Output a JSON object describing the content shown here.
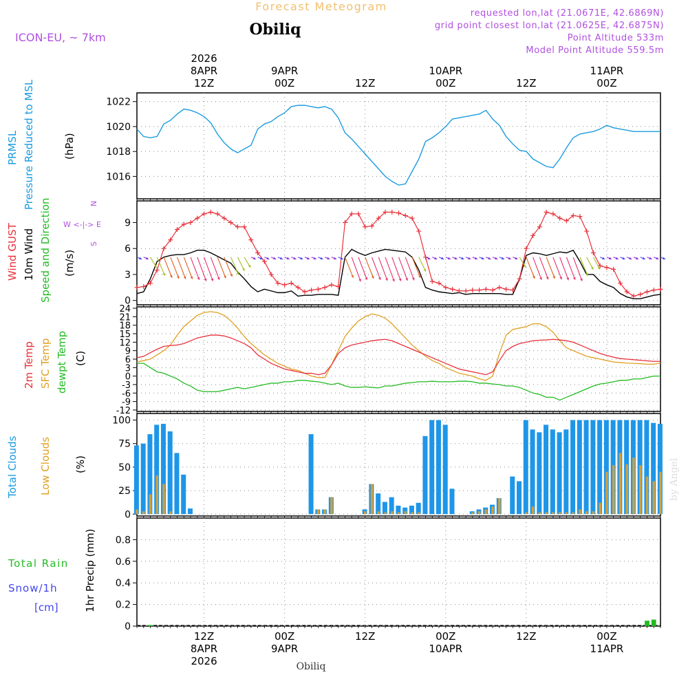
{
  "header": {
    "title": "Forecast Meteogram",
    "location": "Obiliq",
    "model": "ICON-EU, ~ 7km",
    "requested": "requested lon,lat (21.0671E, 42.6869N)",
    "grid_point": "grid point closest lon,lat (21.0625E, 42.6875N)",
    "point_altitude": "Point Altitude 533m",
    "model_altitude": "Model Point Altitude 559.5m",
    "footer_location": "Obiliq",
    "watermark": "by Angel"
  },
  "time_axis": {
    "top_labels": [
      {
        "line1": "2026",
        "line2": "8APR",
        "line3": "12Z",
        "hour": 12
      },
      {
        "line1": "",
        "line2": "9APR",
        "line3": "00Z",
        "hour": 24
      },
      {
        "line1": "",
        "line2": "",
        "line3": "12Z",
        "hour": 36
      },
      {
        "line1": "",
        "line2": "10APR",
        "line3": "00Z",
        "hour": 48
      },
      {
        "line1": "",
        "line2": "",
        "line3": "12Z",
        "hour": 60
      },
      {
        "line1": "",
        "line2": "11APR",
        "line3": "00Z",
        "hour": 72
      }
    ],
    "bottom_labels": [
      {
        "line1": "12Z",
        "line2": "8APR",
        "line3": "2026",
        "hour": 12
      },
      {
        "line1": "00Z",
        "line2": "9APR",
        "line3": "",
        "hour": 24
      },
      {
        "line1": "12Z",
        "line2": "",
        "line3": "",
        "hour": 36
      },
      {
        "line1": "00Z",
        "line2": "10APR",
        "line3": "",
        "hour": 48
      },
      {
        "line1": "12Z",
        "line2": "",
        "line3": "",
        "hour": 60
      },
      {
        "line1": "00Z",
        "line2": "11APR",
        "line3": "",
        "hour": 72
      }
    ],
    "start_hour": 2,
    "end_hour": 80,
    "step_hours": 1
  },
  "colors": {
    "pressure": "#1a9be0",
    "gust": "#e8303a",
    "wind": "#000000",
    "temp2m": "#e8303a",
    "sfc": "#e0a020",
    "dewpt": "#22bb22",
    "clouds_total": "#1e96e8",
    "clouds_low": "#d0a040",
    "rain": "#22bb22",
    "snow": "#4444ee",
    "header_purple": "#b050e0",
    "title_orange": "#f0c070"
  },
  "chart_data": [
    {
      "type": "line",
      "panel": "pressure",
      "title": "PRMSL Pressure Reduced to MSL",
      "ylabel_1": "PRMSL",
      "ylabel_2": "Pressure Reduced to MSL",
      "unit": "(hPa)",
      "ylim": [
        1014.2,
        1022.7
      ],
      "ticks": [
        "1016",
        "1018",
        "1020",
        "1022"
      ],
      "tick_values": [
        1016,
        1018,
        1020,
        1022
      ],
      "series": [
        {
          "name": "PRMSL",
          "values": [
            1019.8,
            1019.2,
            1019.1,
            1019.2,
            1020.2,
            1020.5,
            1021.0,
            1021.4,
            1021.3,
            1021.1,
            1020.8,
            1020.3,
            1019.4,
            1018.7,
            1018.2,
            1017.9,
            1018.2,
            1018.5,
            1019.8,
            1020.2,
            1020.4,
            1020.8,
            1021.1,
            1021.6,
            1021.7,
            1021.7,
            1021.6,
            1021.5,
            1021.6,
            1021.4,
            1020.7,
            1019.5,
            1019.0,
            1018.4,
            1017.8,
            1017.2,
            1016.6,
            1016.0,
            1015.6,
            1015.3,
            1015.4,
            1016.4,
            1017.4,
            1018.8,
            1019.1,
            1019.5,
            1020.0,
            1020.6,
            1020.7,
            1020.8,
            1020.9,
            1021.0,
            1021.3,
            1020.6,
            1020.1,
            1019.2,
            1018.6,
            1018.1,
            1018.0,
            1017.4,
            1017.1,
            1016.8,
            1016.7,
            1017.4,
            1018.3,
            1019.1,
            1019.4,
            1019.5,
            1019.6,
            1019.8,
            1020.1,
            1019.9,
            1019.8,
            1019.7,
            1019.6,
            1019.6,
            1019.6,
            1019.6,
            1019.6
          ]
        }
      ]
    },
    {
      "type": "line",
      "panel": "wind",
      "ylabel_1": "Wind GUST",
      "ylabel_2": "10m Wind",
      "ylabel_3": "Speed and Direction",
      "unit": "(m/s)",
      "compass_n": "N",
      "compass_s": "S",
      "compass_w": "W <-|-> E",
      "ylim": [
        -0.5,
        11.5
      ],
      "ticks": [
        "0",
        "3",
        "6",
        "9"
      ],
      "tick_values": [
        0,
        3,
        6,
        9
      ],
      "series": [
        {
          "name": "Wind GUST",
          "values": [
            1.5,
            1.6,
            2.0,
            3.5,
            6.0,
            7.0,
            8.2,
            8.8,
            9.0,
            9.5,
            10.0,
            10.2,
            10.0,
            9.5,
            9.0,
            8.5,
            8.5,
            7.0,
            5.5,
            4.5,
            3.0,
            2.0,
            1.8,
            2.0,
            1.5,
            1.0,
            1.2,
            1.3,
            1.5,
            1.8,
            1.6,
            9.0,
            10.0,
            10.0,
            8.5,
            8.6,
            9.5,
            10.2,
            10.2,
            10.1,
            9.8,
            9.5,
            8.0,
            5.0,
            2.2,
            2.0,
            1.5,
            1.3,
            1.1,
            1.1,
            1.2,
            1.2,
            1.3,
            1.2,
            1.5,
            1.3,
            1.2,
            2.5,
            6.0,
            7.5,
            8.5,
            10.2,
            10.0,
            9.5,
            9.2,
            9.8,
            9.7,
            8.0,
            5.5,
            4.0,
            3.8,
            3.6,
            2.0,
            1.0,
            0.5,
            0.7,
            1.0,
            1.2,
            1.3
          ]
        },
        {
          "name": "10m Wind",
          "values": [
            0.8,
            1.0,
            2.5,
            4.5,
            5.0,
            5.2,
            5.3,
            5.3,
            5.5,
            5.8,
            5.8,
            5.5,
            5.1,
            4.7,
            4.3,
            3.3,
            2.5,
            1.6,
            1.0,
            1.3,
            1.1,
            0.9,
            0.9,
            1.1,
            0.5,
            0.6,
            0.6,
            0.7,
            0.7,
            0.7,
            0.6,
            5.0,
            5.9,
            5.5,
            5.2,
            5.5,
            5.7,
            5.9,
            5.8,
            5.7,
            5.6,
            5.0,
            3.5,
            1.5,
            1.2,
            1.0,
            0.9,
            0.8,
            0.9,
            0.7,
            0.8,
            0.8,
            0.8,
            0.8,
            0.8,
            0.7,
            0.7,
            2.5,
            5.2,
            5.5,
            5.4,
            5.2,
            5.4,
            5.6,
            5.5,
            5.8,
            4.5,
            3.0,
            3.0,
            2.2,
            1.8,
            1.5,
            0.8,
            0.4,
            0.2,
            0.2,
            0.4,
            0.6,
            0.7
          ]
        }
      ],
      "gust_markers_every": 1
    },
    {
      "type": "line",
      "panel": "temperature",
      "ylabel_1": "2m Temp",
      "ylabel_2": "SFC Temp",
      "ylabel_3": "dewpt Temp",
      "unit": "(C)",
      "ylim": [
        -12.5,
        24.5
      ],
      "ticks": [
        "24",
        "21",
        "18",
        "15",
        "12",
        "9",
        "6",
        "3",
        "0",
        "-3",
        "-6",
        "-9",
        "-12"
      ],
      "tick_values": [
        24,
        21,
        18,
        15,
        12,
        9,
        6,
        3,
        0,
        -3,
        -6,
        -9,
        -12
      ],
      "series": [
        {
          "name": "2m Temp",
          "values": [
            6.5,
            7.0,
            8.3,
            9.5,
            10.5,
            10.8,
            11.0,
            11.5,
            12.5,
            13.5,
            14.0,
            14.5,
            14.5,
            14.2,
            13.5,
            12.5,
            11.5,
            10.0,
            7.5,
            6.0,
            4.5,
            3.5,
            2.5,
            2.0,
            1.5,
            1.0,
            1.0,
            0.5,
            1.0,
            4.0,
            8.0,
            10.0,
            11.0,
            11.5,
            12.0,
            12.5,
            12.8,
            13.0,
            12.5,
            11.5,
            10.5,
            9.5,
            8.5,
            7.5,
            6.5,
            5.5,
            4.5,
            3.5,
            2.5,
            2.0,
            1.5,
            1.0,
            0.5,
            1.5,
            5.5,
            9.0,
            10.5,
            11.5,
            12.0,
            12.5,
            12.7,
            12.8,
            13.0,
            12.8,
            12.5,
            12.0,
            11.0,
            10.0,
            9.0,
            8.0,
            7.3,
            6.7,
            6.2,
            6.0,
            5.8,
            5.6,
            5.4,
            5.2,
            5.2
          ]
        },
        {
          "name": "SFC Temp",
          "values": [
            5.0,
            5.5,
            6.0,
            7.5,
            9.0,
            11.0,
            14.5,
            17.5,
            19.5,
            21.5,
            22.5,
            22.8,
            22.5,
            21.5,
            19.5,
            17.0,
            14.0,
            11.5,
            9.5,
            7.5,
            6.0,
            4.5,
            3.5,
            2.5,
            2.0,
            1.0,
            0.0,
            -0.5,
            -0.5,
            4.0,
            9.0,
            14.0,
            17.0,
            19.5,
            21.0,
            22.0,
            21.5,
            20.5,
            18.5,
            16.0,
            13.5,
            11.0,
            9.0,
            7.0,
            5.5,
            4.5,
            3.0,
            2.0,
            1.0,
            0.5,
            0.0,
            -1.0,
            -1.5,
            0.0,
            8.0,
            14.5,
            16.5,
            17.0,
            17.5,
            18.5,
            18.5,
            17.5,
            15.5,
            12.5,
            10.0,
            9.0,
            8.0,
            7.0,
            6.5,
            6.0,
            5.5,
            5.0,
            4.8,
            4.6,
            4.5,
            4.4,
            4.2,
            4.2,
            4.6
          ]
        },
        {
          "name": "dewpt Temp",
          "values": [
            4.5,
            4.5,
            3.0,
            1.5,
            1.0,
            0.0,
            -1.0,
            -2.5,
            -3.5,
            -5.0,
            -5.5,
            -5.5,
            -5.5,
            -5.0,
            -4.5,
            -4.0,
            -4.5,
            -4.0,
            -3.5,
            -3.0,
            -2.5,
            -2.5,
            -2.0,
            -2.0,
            -1.5,
            -1.5,
            -1.8,
            -2.0,
            -2.5,
            -3.0,
            -2.5,
            -3.5,
            -4.0,
            -4.0,
            -3.8,
            -4.0,
            -4.2,
            -3.5,
            -3.5,
            -3.0,
            -2.5,
            -2.3,
            -2.0,
            -2.0,
            -1.8,
            -2.0,
            -2.0,
            -2.0,
            -1.8,
            -1.8,
            -2.0,
            -2.5,
            -2.5,
            -2.8,
            -3.0,
            -3.5,
            -3.5,
            -4.0,
            -5.0,
            -6.0,
            -6.5,
            -7.5,
            -7.5,
            -8.5,
            -7.5,
            -6.5,
            -5.5,
            -4.5,
            -3.5,
            -2.8,
            -2.5,
            -2.0,
            -1.5,
            -1.5,
            -1.0,
            -1.0,
            -0.5,
            0.0,
            0.0
          ]
        }
      ]
    },
    {
      "type": "bar",
      "panel": "clouds",
      "ylabel_1": "Total Clouds",
      "ylabel_2": "Low Clouds",
      "unit": "(%)",
      "ylim": [
        -2,
        107
      ],
      "ticks": [
        "0",
        "25",
        "50",
        "75",
        "100"
      ],
      "tick_values": [
        0,
        25,
        50,
        75,
        100
      ],
      "series": [
        {
          "name": "Total Clouds",
          "values": [
            73,
            75,
            85,
            95,
            96,
            88,
            65,
            42,
            6,
            0,
            0,
            0,
            0,
            0,
            0,
            0,
            0,
            0,
            0,
            0,
            0,
            0,
            0,
            0,
            0,
            0,
            85,
            5,
            5,
            18,
            0,
            0,
            0,
            0,
            5,
            32,
            22,
            13,
            18,
            9,
            7,
            9,
            12,
            83,
            100,
            100,
            95,
            27,
            0,
            0,
            3,
            5,
            7,
            10,
            17,
            0,
            40,
            35,
            100,
            90,
            87,
            95,
            90,
            87,
            90,
            100,
            100,
            100,
            100,
            100,
            100,
            100,
            100,
            100,
            100,
            100,
            100,
            97,
            96
          ]
        },
        {
          "name": "Low Clouds",
          "values": [
            5,
            3,
            21,
            41,
            32,
            3,
            0,
            0,
            0,
            0,
            0,
            0,
            0,
            0,
            0,
            0,
            0,
            0,
            0,
            0,
            0,
            0,
            0,
            0,
            0,
            0,
            0,
            5,
            5,
            18,
            0,
            0,
            0,
            0,
            3,
            32,
            3,
            2,
            3,
            2,
            3,
            2,
            2,
            0,
            0,
            0,
            0,
            0,
            0,
            0,
            2,
            3,
            5,
            8,
            17,
            0,
            0,
            0,
            2,
            8,
            2,
            2,
            2,
            2,
            2,
            2,
            5,
            3,
            3,
            12,
            45,
            52,
            65,
            53,
            60,
            52,
            40,
            35,
            45
          ]
        }
      ]
    },
    {
      "type": "bar",
      "panel": "precip",
      "ylabel_1": "Total Rain",
      "ylabel_2": "Snow/1h",
      "ylabel_3": "[cm]",
      "unit": "1hr Precip (mm)",
      "ylim": [
        0,
        1.0
      ],
      "ticks": [
        "0",
        "0.2",
        "0.4",
        "0.6",
        "0.8"
      ],
      "tick_values": [
        0,
        0.2,
        0.4,
        0.6,
        0.8
      ],
      "series": [
        {
          "name": "Total Rain",
          "values": [
            0,
            0,
            0.01,
            0,
            0,
            0,
            0,
            0,
            0,
            0,
            0,
            0,
            0,
            0,
            0,
            0,
            0,
            0,
            0,
            0,
            0,
            0,
            0,
            0,
            0,
            0,
            0,
            0,
            0,
            0,
            0,
            0,
            0,
            0,
            0,
            0,
            0,
            0,
            0,
            0,
            0,
            0,
            0,
            0,
            0,
            0,
            0,
            0,
            0,
            0,
            0,
            0,
            0,
            0,
            0,
            0,
            0,
            0,
            0,
            0,
            0,
            0,
            0,
            0,
            0,
            0,
            0,
            0,
            0,
            0,
            0,
            0,
            0,
            0,
            0,
            0,
            0.05,
            0.06,
            0
          ]
        }
      ]
    }
  ]
}
